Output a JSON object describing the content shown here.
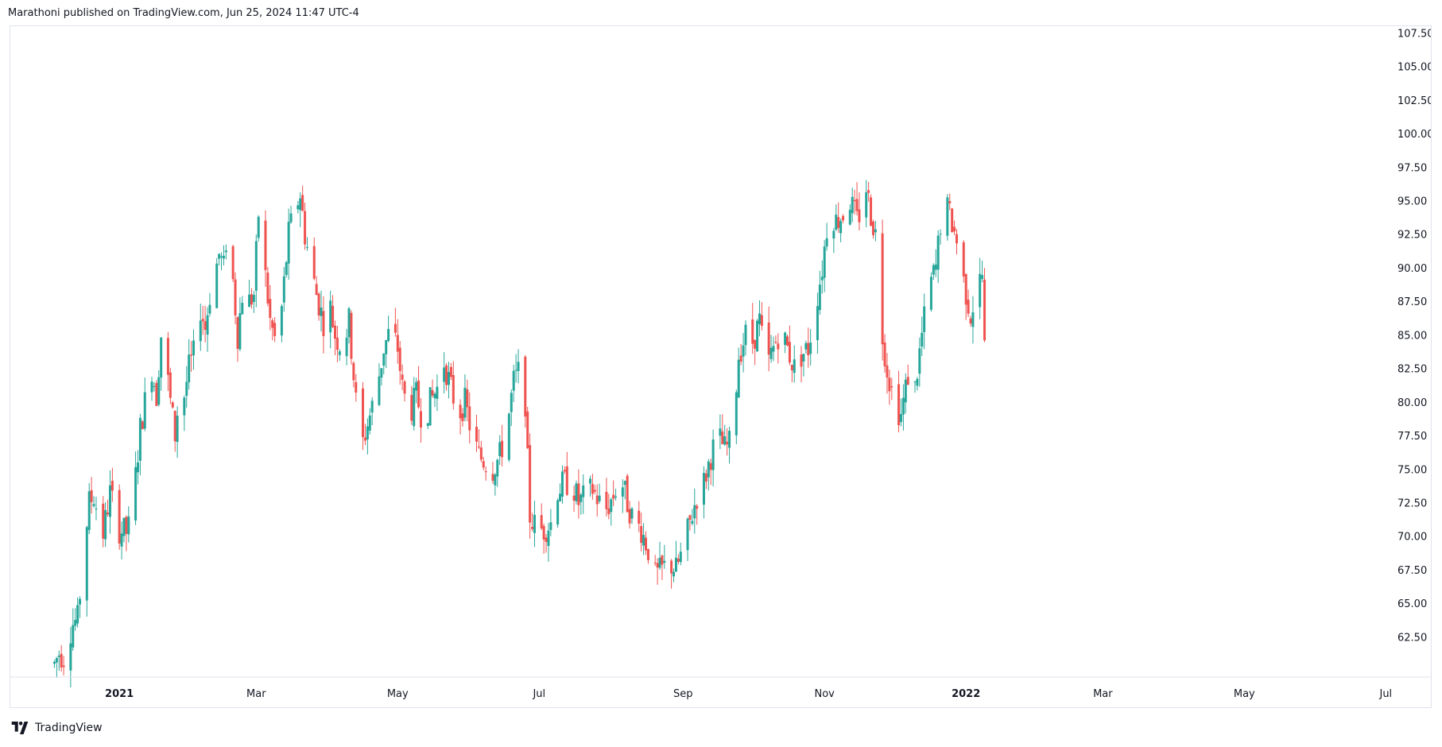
{
  "header": {
    "text": "Marathoni published on TradingView.com, Jun 25, 2024 11:47 UTC-4"
  },
  "footer": {
    "brand": "TradingView"
  },
  "colors": {
    "up": "#26a69a",
    "down": "#ef5350",
    "grid": "#e0e3eb",
    "text": "#131722"
  },
  "chart_data": {
    "type": "candlestick",
    "title": "",
    "y_axis": {
      "side": "right",
      "ylim": [
        59.5,
        108.0
      ],
      "ticks": [
        "62.50",
        "65.00",
        "67.50",
        "70.00",
        "72.50",
        "75.00",
        "77.50",
        "80.00",
        "82.50",
        "85.00",
        "87.50",
        "90.00",
        "92.50",
        "95.00",
        "97.50",
        "100.00",
        "102.50",
        "105.00",
        "107.50"
      ]
    },
    "x_axis": {
      "labels": [
        {
          "text": "2021",
          "day": 28,
          "bold": true
        },
        {
          "text": "Mar",
          "day": 87,
          "bold": false
        },
        {
          "text": "May",
          "day": 148,
          "bold": false
        },
        {
          "text": "Jul",
          "day": 209,
          "bold": false
        },
        {
          "text": "Sep",
          "day": 271,
          "bold": false
        },
        {
          "text": "Nov",
          "day": 332,
          "bold": false
        },
        {
          "text": "2022",
          "day": 393,
          "bold": true
        },
        {
          "text": "Mar",
          "day": 452,
          "bold": false
        },
        {
          "text": "May",
          "day": 513,
          "bold": false
        },
        {
          "text": "Jul",
          "day": 574,
          "bold": false
        }
      ],
      "domain": [
        -19,
        578
      ]
    },
    "series": [
      {
        "name": "",
        "keyframes": [
          [
            0,
            60.5
          ],
          [
            2,
            61.3
          ],
          [
            4,
            61.0
          ],
          [
            6,
            62.5
          ],
          [
            8,
            63.5
          ],
          [
            10,
            63.8
          ],
          [
            13,
            69.5
          ],
          [
            15,
            72.5
          ],
          [
            17,
            73.0
          ],
          [
            19,
            71.5
          ],
          [
            21,
            70.2
          ],
          [
            24,
            73.2
          ],
          [
            26,
            72.0
          ],
          [
            28,
            70.5
          ],
          [
            31,
            70.3
          ],
          [
            33,
            71.0
          ],
          [
            35,
            74.5
          ],
          [
            37,
            78.0
          ],
          [
            39,
            80.0
          ],
          [
            42,
            82.5
          ],
          [
            44,
            80.5
          ],
          [
            46,
            85.0
          ],
          [
            48,
            83.0
          ],
          [
            50,
            80.0
          ],
          [
            52,
            77.5
          ],
          [
            54,
            81.0
          ],
          [
            56,
            80.5
          ],
          [
            58,
            82.5
          ],
          [
            61,
            84.0
          ],
          [
            63,
            87.0
          ],
          [
            65,
            85.5
          ],
          [
            67,
            88.0
          ],
          [
            69,
            89.5
          ],
          [
            71,
            91.0
          ],
          [
            73,
            90.0
          ],
          [
            75,
            94.0
          ],
          [
            77,
            89.0
          ],
          [
            79,
            85.0
          ],
          [
            81,
            88.0
          ],
          [
            84,
            87.5
          ],
          [
            86,
            88.0
          ],
          [
            88,
            94.0
          ],
          [
            90,
            91.0
          ],
          [
            93,
            86.0
          ],
          [
            96,
            84.0
          ],
          [
            98,
            87.0
          ],
          [
            101,
            92.5
          ],
          [
            103,
            94.0
          ],
          [
            106,
            95.5
          ],
          [
            108,
            92.5
          ],
          [
            110,
            90.5
          ],
          [
            113,
            88.0
          ],
          [
            116,
            86.0
          ],
          [
            118,
            88.0
          ],
          [
            121,
            85.0
          ],
          [
            124,
            84.0
          ],
          [
            127,
            86.0
          ],
          [
            130,
            80.0
          ],
          [
            133,
            77.0
          ],
          [
            136,
            79.0
          ],
          [
            139,
            81.0
          ],
          [
            142,
            84.0
          ],
          [
            145,
            85.5
          ],
          [
            148,
            84.0
          ],
          [
            150,
            81.0
          ],
          [
            153,
            79.0
          ],
          [
            156,
            80.5
          ],
          [
            159,
            78.5
          ],
          [
            162,
            80.0
          ],
          [
            165,
            81.0
          ],
          [
            168,
            83.0
          ],
          [
            171,
            81.0
          ],
          [
            174,
            79.0
          ],
          [
            177,
            80.0
          ],
          [
            180,
            77.5
          ],
          [
            183,
            76.0
          ],
          [
            186,
            75.5
          ],
          [
            189,
            75.0
          ],
          [
            192,
            76.0
          ],
          [
            195,
            78.0
          ],
          [
            198,
            81.5
          ],
          [
            201,
            82.5
          ],
          [
            203,
            80.0
          ],
          [
            204,
            75.5
          ],
          [
            205,
            71.5
          ],
          [
            208,
            70.5
          ],
          [
            211,
            70.5
          ],
          [
            214,
            71.0
          ],
          [
            217,
            73.5
          ],
          [
            220,
            74.0
          ],
          [
            223,
            74.0
          ],
          [
            226,
            72.5
          ],
          [
            229,
            73.0
          ],
          [
            232,
            73.5
          ],
          [
            235,
            72.5
          ],
          [
            238,
            72.0
          ],
          [
            241,
            73.0
          ],
          [
            244,
            74.5
          ],
          [
            247,
            72.5
          ],
          [
            250,
            71.0
          ],
          [
            253,
            70.5
          ],
          [
            256,
            69.0
          ],
          [
            259,
            67.0
          ],
          [
            262,
            67.5
          ],
          [
            265,
            68.0
          ],
          [
            268,
            67.5
          ],
          [
            271,
            69.0
          ],
          [
            274,
            71.0
          ],
          [
            277,
            73.0
          ],
          [
            280,
            74.0
          ],
          [
            283,
            76.0
          ],
          [
            286,
            77.5
          ],
          [
            289,
            76.5
          ],
          [
            292,
            77.0
          ],
          [
            295,
            83.5
          ],
          [
            298,
            85.0
          ],
          [
            301,
            84.5
          ],
          [
            304,
            86.0
          ],
          [
            307,
            82.5
          ],
          [
            310,
            84.0
          ],
          [
            313,
            85.5
          ],
          [
            316,
            84.0
          ],
          [
            319,
            82.5
          ],
          [
            322,
            83.5
          ],
          [
            325,
            84.0
          ],
          [
            328,
            87.0
          ],
          [
            331,
            90.0
          ],
          [
            334,
            94.5
          ],
          [
            337,
            93.5
          ],
          [
            340,
            94.0
          ],
          [
            343,
            95.0
          ],
          [
            346,
            93.5
          ],
          [
            348,
            94.5
          ],
          [
            350,
            96.0
          ],
          [
            352,
            94.0
          ],
          [
            354,
            92.5
          ],
          [
            356,
            89.0
          ],
          [
            357,
            85.0
          ],
          [
            359,
            82.5
          ],
          [
            362,
            80.0
          ],
          [
            365,
            79.0
          ],
          [
            368,
            82.0
          ],
          [
            371,
            81.0
          ],
          [
            374,
            85.0
          ],
          [
            377,
            88.5
          ],
          [
            380,
            90.0
          ],
          [
            383,
            95.0
          ],
          [
            386,
            94.0
          ],
          [
            389,
            92.0
          ],
          [
            392,
            89.0
          ],
          [
            395,
            86.5
          ],
          [
            398,
            88.5
          ],
          [
            400,
            89.5
          ],
          [
            401,
            84.0
          ]
        ]
      }
    ]
  }
}
